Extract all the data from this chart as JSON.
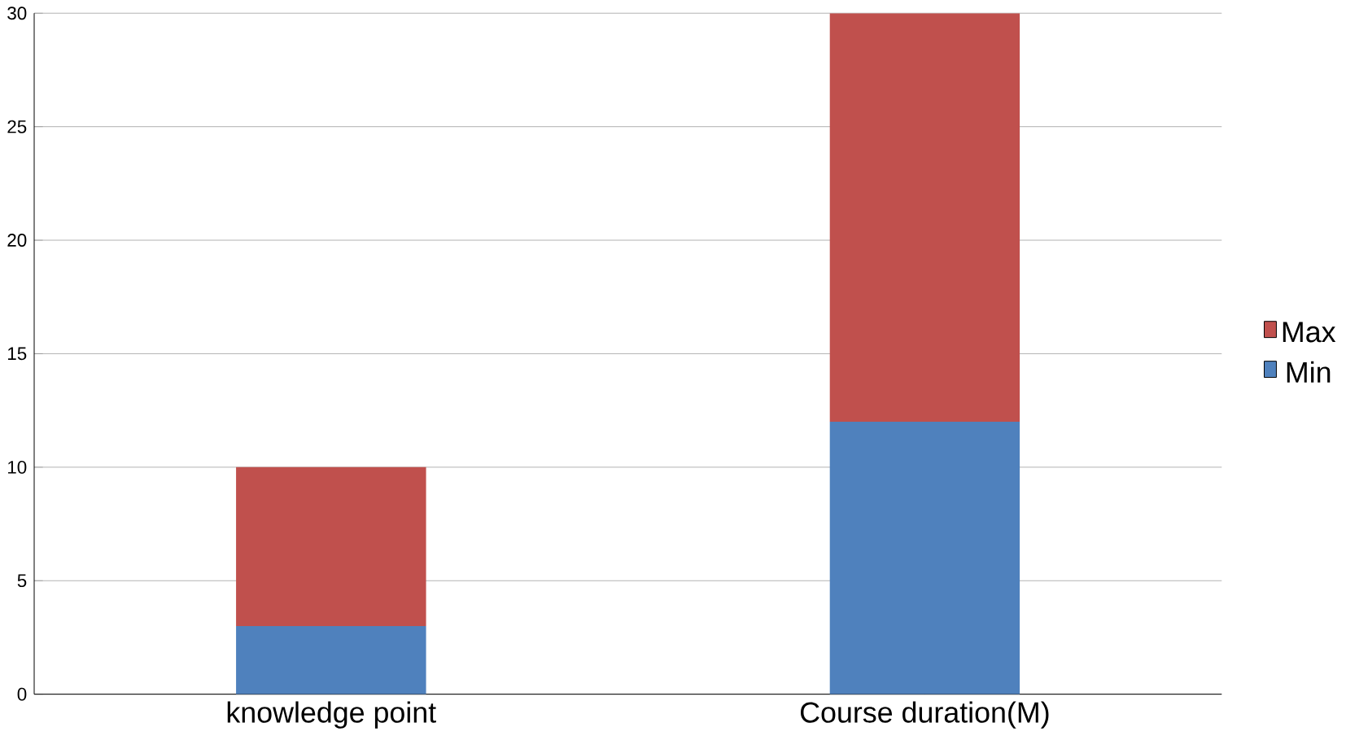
{
  "chart_data": {
    "type": "bar",
    "stacked": true,
    "categories": [
      "knowledge point",
      "Course duration(M)"
    ],
    "series": [
      {
        "name": "Min",
        "color": "#4f81bd",
        "values": [
          3,
          12
        ]
      },
      {
        "name": "Max",
        "color": "#c0504d",
        "values": [
          7,
          18
        ]
      }
    ],
    "ylim": [
      0,
      30
    ],
    "yticks": [
      0,
      5,
      10,
      15,
      20,
      25,
      30
    ],
    "grid": "y",
    "legend": "right"
  }
}
